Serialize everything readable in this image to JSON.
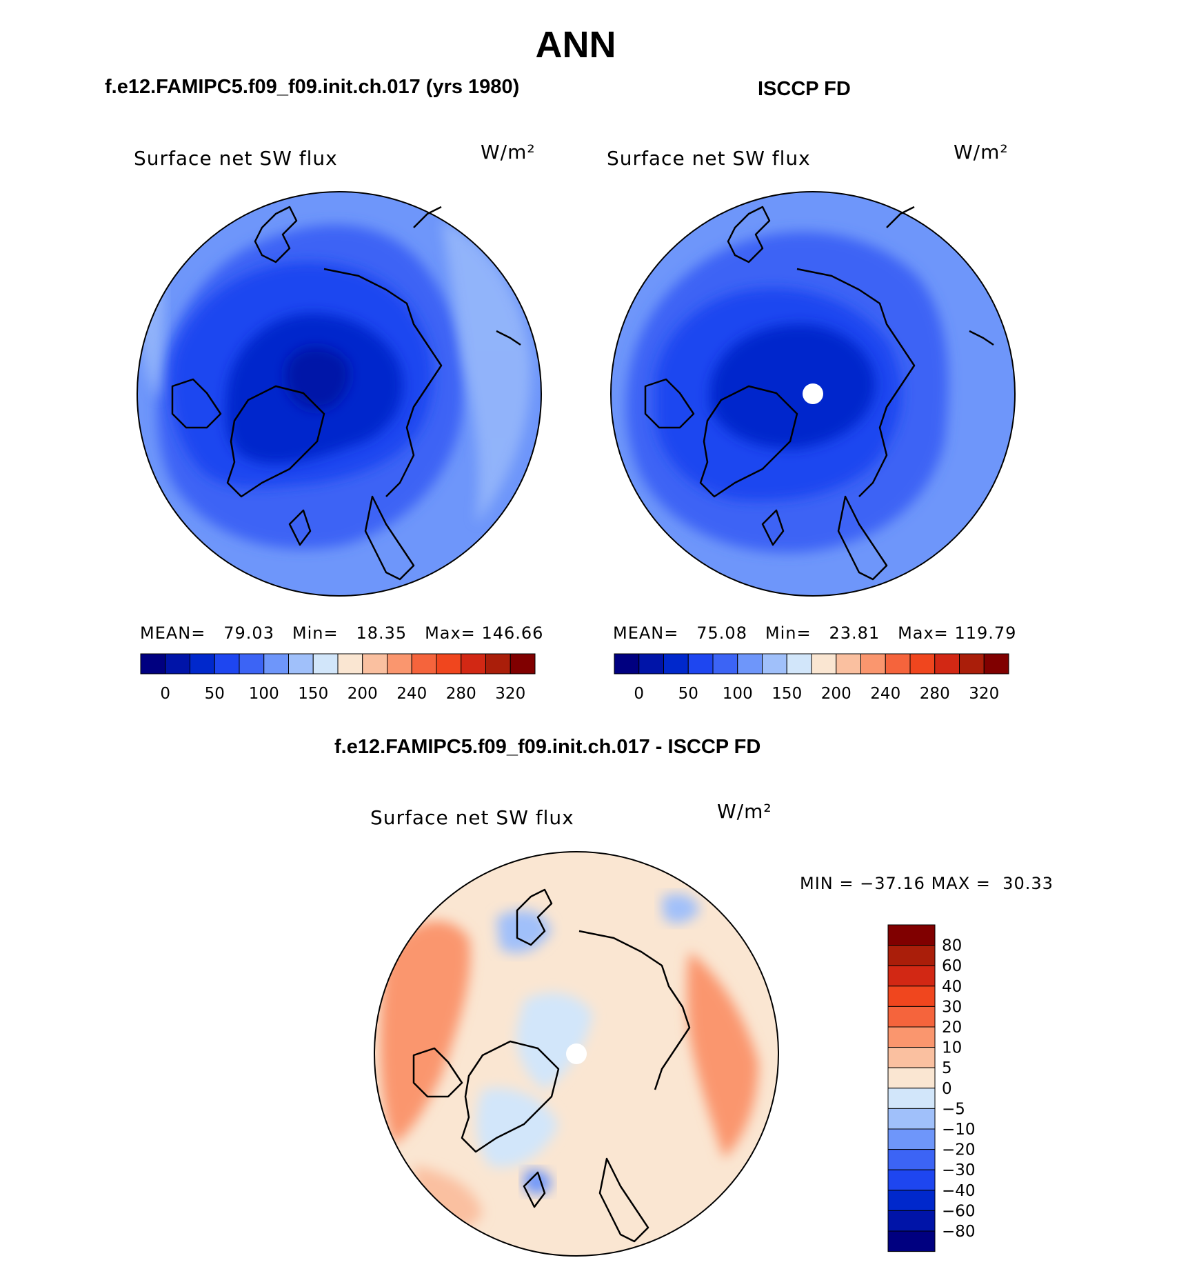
{
  "figure": {
    "title": "ANN",
    "top_left_title": "f.e12.FAMIPC5.f09_f09.init.ch.017 (yrs 1980)",
    "top_right_title": "ISCCP FD",
    "bottom_title": "f.e12.FAMIPC5.f09_f09.init.ch.017 - ISCCP FD"
  },
  "chart_data": [
    {
      "type": "heatmap",
      "projection": "north-polar-stereographic",
      "title": "f.e12.FAMIPC5.f09_f09.init.ch.017 (yrs 1980)",
      "variable": "Surface net SW flux",
      "units": "W/m²",
      "stats": {
        "mean_label": "MEAN=",
        "mean": "79.03",
        "min_label": "Min=",
        "min": "18.35",
        "max_label": "Max=",
        "max": "146.66"
      },
      "colorbar_tick_labels": [
        "0",
        "50",
        "100",
        "150",
        "200",
        "240",
        "280",
        "320"
      ],
      "colors": [
        "#000080",
        "#0014a8",
        "#0028cc",
        "#1e46f0",
        "#3c64f5",
        "#6e96fa",
        "#a0c0fa",
        "#d2e6fa",
        "#fae6d2",
        "#fac0a0",
        "#fa966e",
        "#f5643c",
        "#f0461e",
        "#d22814",
        "#aa1e0a",
        "#800000"
      ]
    },
    {
      "type": "heatmap",
      "projection": "north-polar-stereographic",
      "title": "ISCCP FD",
      "variable": "Surface net SW flux",
      "units": "W/m²",
      "stats": {
        "mean_label": "MEAN=",
        "mean": "75.08",
        "min_label": "Min=",
        "min": "23.81",
        "max_label": "Max=",
        "max": "119.79"
      },
      "colorbar_tick_labels": [
        "0",
        "50",
        "100",
        "150",
        "200",
        "240",
        "280",
        "320"
      ]
    },
    {
      "type": "heatmap",
      "projection": "north-polar-stereographic",
      "title": "f.e12.FAMIPC5.f09_f09.init.ch.017 - ISCCP FD",
      "variable": "Surface net SW flux",
      "units": "W/m²",
      "stats": {
        "min_label": "MIN =",
        "min": "−37.16",
        "max_label": "MAX =",
        "max": "30.33"
      },
      "colorbar_tick_labels": [
        "80",
        "60",
        "40",
        "30",
        "20",
        "10",
        "5",
        "0",
        "−5",
        "−10",
        "−20",
        "−30",
        "−40",
        "−60",
        "−80"
      ],
      "colors": [
        "#800000",
        "#aa1e0a",
        "#d22814",
        "#f0461e",
        "#f5643c",
        "#fa966e",
        "#fac0a0",
        "#fae6d2",
        "#d2e6fa",
        "#a0c0fa",
        "#6e96fa",
        "#3c64f5",
        "#1e46f0",
        "#0028cc",
        "#0014a8",
        "#000080"
      ]
    }
  ]
}
